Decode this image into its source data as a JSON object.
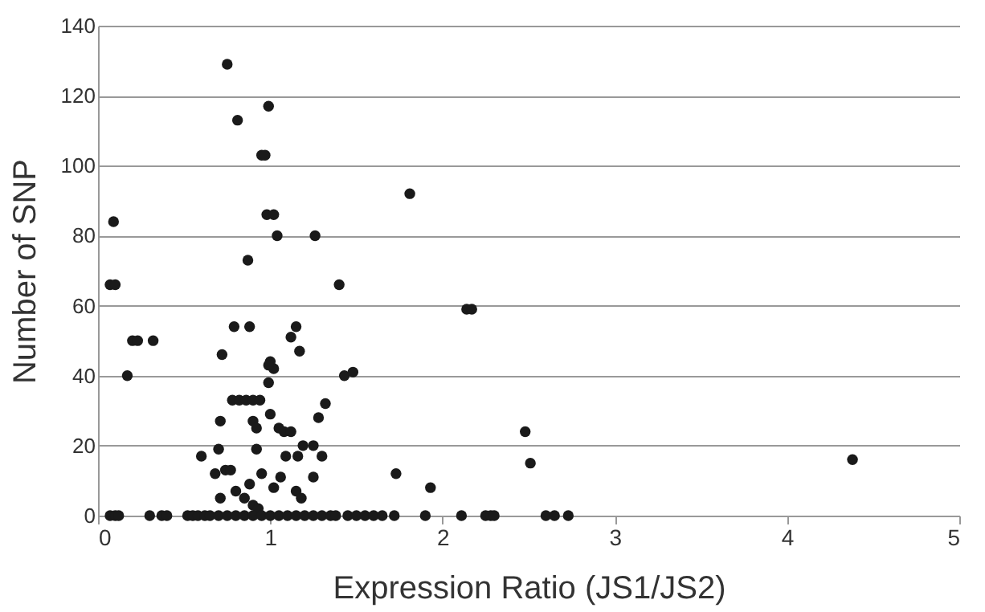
{
  "chart_data": {
    "type": "scatter",
    "xlabel": "Expression Ratio (JS1/JS2)",
    "ylabel": "Number of SNP",
    "xlim": [
      0,
      5
    ],
    "xticks": [
      0,
      1,
      2,
      3,
      4,
      5
    ],
    "ylim": [
      0,
      140
    ],
    "yticks": [
      0,
      20,
      40,
      60,
      80,
      100,
      120,
      140
    ],
    "grid": "y",
    "marker": "circle",
    "series": [
      {
        "color": "#1a1a1a",
        "x": [
          0.75,
          0.81,
          0.99,
          0.95,
          0.97,
          0.98,
          1.02,
          1.04,
          1.26,
          0.87,
          0.09,
          0.07,
          0.1,
          1.4,
          1.81,
          2.14,
          2.17,
          0.2,
          0.23,
          0.32,
          0.17,
          0.79,
          0.88,
          1.12,
          1.15,
          1.17,
          0.72,
          1.0,
          1.02,
          0.99,
          0.99,
          1.43,
          1.48,
          0.78,
          0.82,
          0.86,
          0.9,
          0.94,
          0.71,
          0.9,
          0.92,
          1.0,
          1.05,
          1.08,
          1.12,
          1.32,
          1.28,
          0.7,
          0.92,
          0.6,
          0.68,
          0.74,
          0.77,
          1.09,
          1.16,
          1.19,
          1.25,
          1.3,
          1.25,
          1.06,
          1.02,
          1.15,
          1.18,
          0.71,
          0.8,
          0.85,
          0.88,
          0.9,
          0.95,
          0.93,
          1.73,
          1.93,
          2.48,
          2.51,
          4.38,
          0.07,
          0.1,
          0.12,
          0.3,
          0.37,
          0.4,
          0.52,
          0.55,
          0.58,
          0.62,
          0.65,
          0.7,
          0.75,
          0.8,
          0.85,
          0.9,
          0.95,
          1.0,
          1.05,
          1.1,
          1.15,
          1.2,
          1.25,
          1.3,
          1.35,
          1.38,
          1.45,
          1.5,
          1.55,
          1.6,
          1.65,
          1.72,
          1.9,
          2.11,
          2.25,
          2.28,
          2.3,
          2.6,
          2.65,
          2.73
        ],
        "values": [
          129,
          113,
          117,
          103,
          103,
          86,
          86,
          80,
          80,
          73,
          84,
          66,
          66,
          66,
          92,
          59,
          59,
          50,
          50,
          50,
          40,
          54,
          54,
          51,
          54,
          47,
          46,
          44,
          42,
          38,
          43,
          40,
          41,
          33,
          33,
          33,
          33,
          33,
          27,
          27,
          25,
          29,
          25,
          24,
          24,
          32,
          28,
          19,
          19,
          17,
          12,
          13,
          13,
          17,
          17,
          20,
          20,
          17,
          11,
          11,
          8,
          7,
          5,
          5,
          7,
          5,
          9,
          3,
          12,
          2,
          12,
          8,
          24,
          15,
          16,
          0,
          0,
          0,
          0,
          0,
          0,
          0,
          0,
          0,
          0,
          0,
          0,
          0,
          0,
          0,
          0,
          0,
          0,
          0,
          0,
          0,
          0,
          0,
          0,
          0,
          0,
          0,
          0,
          0,
          0,
          0,
          0,
          0,
          0,
          0,
          0,
          0,
          0,
          0,
          0
        ]
      }
    ]
  }
}
